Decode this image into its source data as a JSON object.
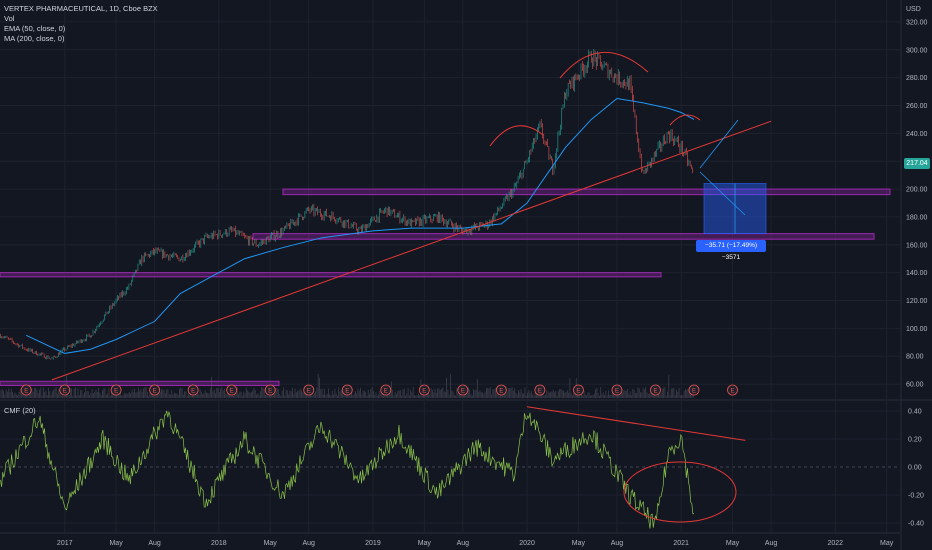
{
  "legend": {
    "symbol": "VERTEX PHARMACEUTICAL, 1D, Cboe BZX",
    "vol": "Vol",
    "ema": "EMA (50, close, 0)",
    "ma": "MA (200, close, 0)"
  },
  "cmf_label": "CMF (20)",
  "currency": "USD",
  "last_price_tag": "217.04",
  "measure_label": "−35.71 (−17.49%) −3571",
  "colors": {
    "background": "#131722",
    "up": "#26a69a",
    "down": "#ef5350",
    "ema": "#2196f3",
    "trend": "#e53935",
    "zone": "#9c27b0",
    "cmf": "#8bc34a",
    "measure": "#2962ff"
  },
  "chart_data": [
    {
      "type": "line",
      "title": "VERTEX PHARMACEUTICAL, 1D, Cboe BZX",
      "ylabel": "USD",
      "ylim": [
        50,
        330
      ],
      "x_ticks": [
        "2017",
        "May",
        "Aug",
        "2018",
        "May",
        "Aug",
        "2019",
        "May",
        "Aug",
        "2020",
        "May",
        "Aug",
        "2021",
        "May",
        "Aug",
        "2022",
        "May"
      ],
      "y_ticks": [
        "60.00",
        "80.00",
        "100.00",
        "120.00",
        "140.00",
        "160.00",
        "180.00",
        "200.00",
        "220.00",
        "240.00",
        "260.00",
        "280.00",
        "300.00",
        "320.00"
      ],
      "series": [
        {
          "name": "Vertex close (approx.)",
          "x": [
            "2016-08",
            "2016-10",
            "2016-12",
            "2017-01",
            "2017-03",
            "2017-05",
            "2017-06",
            "2017-07",
            "2017-08",
            "2017-10",
            "2017-12",
            "2018-02",
            "2018-04",
            "2018-06",
            "2018-08",
            "2018-10",
            "2018-12",
            "2019-02",
            "2019-04",
            "2019-06",
            "2019-08",
            "2019-10",
            "2019-12",
            "2020-01",
            "2020-02",
            "2020-03",
            "2020-04",
            "2020-06",
            "2020-08",
            "2020-09",
            "2020-10",
            "2020-11",
            "2020-12",
            "2021-01",
            "2021-02"
          ],
          "values": [
            95,
            85,
            78,
            85,
            95,
            120,
            130,
            150,
            155,
            150,
            165,
            170,
            160,
            170,
            185,
            180,
            170,
            185,
            175,
            180,
            170,
            175,
            200,
            220,
            245,
            215,
            270,
            295,
            280,
            275,
            210,
            225,
            240,
            230,
            210
          ]
        },
        {
          "name": "EMA (50, close, 0)",
          "x": [
            "2016-10",
            "2017-01",
            "2017-03",
            "2017-05",
            "2017-08",
            "2017-10",
            "2017-12",
            "2018-03",
            "2018-06",
            "2018-09",
            "2019-01",
            "2019-04",
            "2019-08",
            "2019-11",
            "2020-01",
            "2020-04",
            "2020-06",
            "2020-08",
            "2020-10",
            "2020-12",
            "2021-01",
            "2021-02"
          ],
          "values": [
            95,
            82,
            85,
            92,
            105,
            125,
            135,
            150,
            158,
            165,
            170,
            172,
            172,
            175,
            190,
            230,
            250,
            265,
            262,
            258,
            255,
            250
          ]
        }
      ],
      "horizontal_zones": [
        [
          196,
          200
        ],
        [
          164,
          168
        ],
        [
          137,
          140
        ],
        [
          59,
          62
        ]
      ],
      "trendline": {
        "from": [
          "2016-12",
          63
        ],
        "to": [
          "2021-08",
          220
        ]
      },
      "measure": {
        "change": -35.71,
        "change_pct": -17.49,
        "from": 204,
        "to": 168
      }
    },
    {
      "type": "line",
      "title": "CMF (20)",
      "ylim": [
        -0.45,
        0.45
      ],
      "y_ticks": [
        "0.40",
        "0.20",
        "0.00",
        "-0.20",
        "-0.40"
      ],
      "series": [
        {
          "name": "CMF (20)",
          "x": [
            "2016-08",
            "2016-11",
            "2017-01",
            "2017-04",
            "2017-06",
            "2017-09",
            "2017-12",
            "2018-03",
            "2018-06",
            "2018-09",
            "2018-12",
            "2019-03",
            "2019-06",
            "2019-09",
            "2019-12",
            "2020-01",
            "2020-03",
            "2020-06",
            "2020-09",
            "2020-11",
            "2020-12",
            "2021-01",
            "2021-02"
          ],
          "values": [
            -0.1,
            0.35,
            -0.3,
            0.2,
            -0.1,
            0.4,
            -0.25,
            0.2,
            -0.2,
            0.3,
            -0.1,
            0.25,
            -0.2,
            0.15,
            -0.05,
            0.42,
            0.05,
            0.25,
            -0.2,
            -0.42,
            0.1,
            0.22,
            -0.35
          ]
        }
      ],
      "trendline": {
        "from": [
          "2020-01",
          0.43
        ],
        "to": [
          "2021-06",
          0.19
        ]
      }
    }
  ]
}
